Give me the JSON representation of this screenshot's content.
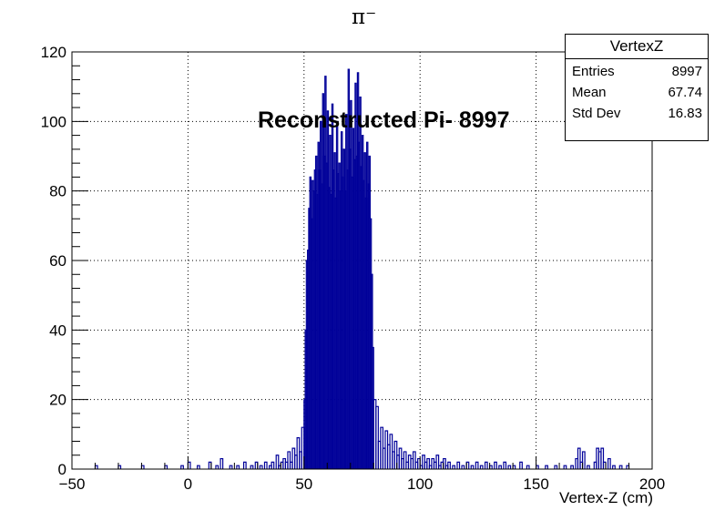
{
  "chart_data": {
    "type": "histogram",
    "title": "π⁻",
    "xlabel": "Vertex-Z (cm)",
    "ylabel": "",
    "xlim": [
      -50,
      200
    ],
    "ylim": [
      0,
      120
    ],
    "x_ticks": [
      "−50",
      "0",
      "50",
      "100",
      "150",
      "200"
    ],
    "y_ticks": [
      "0",
      "20",
      "40",
      "60",
      "80",
      "100",
      "120"
    ],
    "grid": true,
    "line_color": "#000099",
    "annotation": "Reconstructed Pi- 8997",
    "stats_box": {
      "title": "VertexZ",
      "rows": [
        {
          "label": "Entries",
          "value": "8997"
        },
        {
          "label": "Mean",
          "value": "67.74"
        },
        {
          "label": "Std Dev",
          "value": "16.83"
        }
      ]
    },
    "bins": [
      {
        "x": -40,
        "y": 1
      },
      {
        "x": -30,
        "y": 1
      },
      {
        "x": -20,
        "y": 1
      },
      {
        "x": -10,
        "y": 1
      },
      {
        "x": -3,
        "y": 1
      },
      {
        "x": 0,
        "y": 2
      },
      {
        "x": 4,
        "y": 1
      },
      {
        "x": 9,
        "y": 2
      },
      {
        "x": 12,
        "y": 1
      },
      {
        "x": 14,
        "y": 3
      },
      {
        "x": 18,
        "y": 1
      },
      {
        "x": 21,
        "y": 1
      },
      {
        "x": 24,
        "y": 2
      },
      {
        "x": 27,
        "y": 1
      },
      {
        "x": 29,
        "y": 2
      },
      {
        "x": 31,
        "y": 1
      },
      {
        "x": 33,
        "y": 2
      },
      {
        "x": 35,
        "y": 1
      },
      {
        "x": 36,
        "y": 2
      },
      {
        "x": 38,
        "y": 4
      },
      {
        "x": 39,
        "y": 1
      },
      {
        "x": 40,
        "y": 2
      },
      {
        "x": 41,
        "y": 3
      },
      {
        "x": 42,
        "y": 2
      },
      {
        "x": 43,
        "y": 5
      },
      {
        "x": 44,
        "y": 2
      },
      {
        "x": 45,
        "y": 6
      },
      {
        "x": 46,
        "y": 4
      },
      {
        "x": 47,
        "y": 9
      },
      {
        "x": 48,
        "y": 5
      },
      {
        "x": 49,
        "y": 12
      },
      {
        "x": 50,
        "y": 20
      },
      {
        "x": 50.5,
        "y": 40
      },
      {
        "x": 51,
        "y": 60
      },
      {
        "x": 51.5,
        "y": 63
      },
      {
        "x": 52,
        "y": 75
      },
      {
        "x": 52.5,
        "y": 84
      },
      {
        "x": 53,
        "y": 72
      },
      {
        "x": 53.5,
        "y": 83
      },
      {
        "x": 54,
        "y": 80
      },
      {
        "x": 54.5,
        "y": 86
      },
      {
        "x": 55,
        "y": 90
      },
      {
        "x": 55.5,
        "y": 79
      },
      {
        "x": 56,
        "y": 94
      },
      {
        "x": 56.5,
        "y": 86
      },
      {
        "x": 57,
        "y": 100
      },
      {
        "x": 57.5,
        "y": 82
      },
      {
        "x": 58,
        "y": 108
      },
      {
        "x": 58.5,
        "y": 90
      },
      {
        "x": 59,
        "y": 113
      },
      {
        "x": 59.5,
        "y": 88
      },
      {
        "x": 60,
        "y": 103
      },
      {
        "x": 60.5,
        "y": 81
      },
      {
        "x": 61,
        "y": 96
      },
      {
        "x": 61.5,
        "y": 79
      },
      {
        "x": 62,
        "y": 105
      },
      {
        "x": 62.5,
        "y": 86
      },
      {
        "x": 63,
        "y": 91
      },
      {
        "x": 63.5,
        "y": 78
      },
      {
        "x": 64,
        "y": 100
      },
      {
        "x": 64.5,
        "y": 85
      },
      {
        "x": 65,
        "y": 88
      },
      {
        "x": 65.5,
        "y": 80
      },
      {
        "x": 66,
        "y": 97
      },
      {
        "x": 66.5,
        "y": 84
      },
      {
        "x": 67,
        "y": 92
      },
      {
        "x": 67.5,
        "y": 80
      },
      {
        "x": 68,
        "y": 102
      },
      {
        "x": 68.5,
        "y": 86
      },
      {
        "x": 69,
        "y": 115
      },
      {
        "x": 69.5,
        "y": 92
      },
      {
        "x": 70,
        "y": 106
      },
      {
        "x": 70.5,
        "y": 84
      },
      {
        "x": 71,
        "y": 98
      },
      {
        "x": 71.5,
        "y": 89
      },
      {
        "x": 72,
        "y": 111
      },
      {
        "x": 72.5,
        "y": 90
      },
      {
        "x": 73,
        "y": 114
      },
      {
        "x": 73.5,
        "y": 94
      },
      {
        "x": 74,
        "y": 107
      },
      {
        "x": 74.5,
        "y": 87
      },
      {
        "x": 75,
        "y": 96
      },
      {
        "x": 75.5,
        "y": 83
      },
      {
        "x": 76,
        "y": 91
      },
      {
        "x": 76.5,
        "y": 78
      },
      {
        "x": 77,
        "y": 94
      },
      {
        "x": 77.5,
        "y": 82
      },
      {
        "x": 78,
        "y": 90
      },
      {
        "x": 78.5,
        "y": 72
      },
      {
        "x": 79,
        "y": 56
      },
      {
        "x": 79.5,
        "y": 35
      },
      {
        "x": 80,
        "y": 20
      },
      {
        "x": 81,
        "y": 18
      },
      {
        "x": 82,
        "y": 8
      },
      {
        "x": 83,
        "y": 12
      },
      {
        "x": 84,
        "y": 6
      },
      {
        "x": 85,
        "y": 11
      },
      {
        "x": 86,
        "y": 7
      },
      {
        "x": 87,
        "y": 10
      },
      {
        "x": 88,
        "y": 5
      },
      {
        "x": 89,
        "y": 8
      },
      {
        "x": 90,
        "y": 4
      },
      {
        "x": 91,
        "y": 6
      },
      {
        "x": 92,
        "y": 3
      },
      {
        "x": 93,
        "y": 5
      },
      {
        "x": 94,
        "y": 2
      },
      {
        "x": 95,
        "y": 4
      },
      {
        "x": 96,
        "y": 3
      },
      {
        "x": 97,
        "y": 5
      },
      {
        "x": 98,
        "y": 2
      },
      {
        "x": 99,
        "y": 3
      },
      {
        "x": 100,
        "y": 1
      },
      {
        "x": 101,
        "y": 4
      },
      {
        "x": 102,
        "y": 2
      },
      {
        "x": 103,
        "y": 3
      },
      {
        "x": 104,
        "y": 1
      },
      {
        "x": 105,
        "y": 3
      },
      {
        "x": 106,
        "y": 2
      },
      {
        "x": 107,
        "y": 4
      },
      {
        "x": 108,
        "y": 1
      },
      {
        "x": 109,
        "y": 2
      },
      {
        "x": 110,
        "y": 3
      },
      {
        "x": 111,
        "y": 1
      },
      {
        "x": 112,
        "y": 2
      },
      {
        "x": 114,
        "y": 1
      },
      {
        "x": 116,
        "y": 2
      },
      {
        "x": 118,
        "y": 1
      },
      {
        "x": 120,
        "y": 2
      },
      {
        "x": 122,
        "y": 1
      },
      {
        "x": 124,
        "y": 2
      },
      {
        "x": 126,
        "y": 1
      },
      {
        "x": 128,
        "y": 2
      },
      {
        "x": 130,
        "y": 1
      },
      {
        "x": 132,
        "y": 2
      },
      {
        "x": 134,
        "y": 1
      },
      {
        "x": 136,
        "y": 2
      },
      {
        "x": 138,
        "y": 1
      },
      {
        "x": 140,
        "y": 1
      },
      {
        "x": 143,
        "y": 2
      },
      {
        "x": 146,
        "y": 1
      },
      {
        "x": 150,
        "y": 1
      },
      {
        "x": 154,
        "y": 1
      },
      {
        "x": 158,
        "y": 1
      },
      {
        "x": 162,
        "y": 1
      },
      {
        "x": 165,
        "y": 1
      },
      {
        "x": 167,
        "y": 3
      },
      {
        "x": 168,
        "y": 6
      },
      {
        "x": 169,
        "y": 2
      },
      {
        "x": 170,
        "y": 5
      },
      {
        "x": 172,
        "y": 1
      },
      {
        "x": 175,
        "y": 2
      },
      {
        "x": 176,
        "y": 6
      },
      {
        "x": 177,
        "y": 5
      },
      {
        "x": 178,
        "y": 6
      },
      {
        "x": 179,
        "y": 2
      },
      {
        "x": 181,
        "y": 3
      },
      {
        "x": 183,
        "y": 1
      },
      {
        "x": 186,
        "y": 1
      },
      {
        "x": 189,
        "y": 1
      }
    ]
  }
}
